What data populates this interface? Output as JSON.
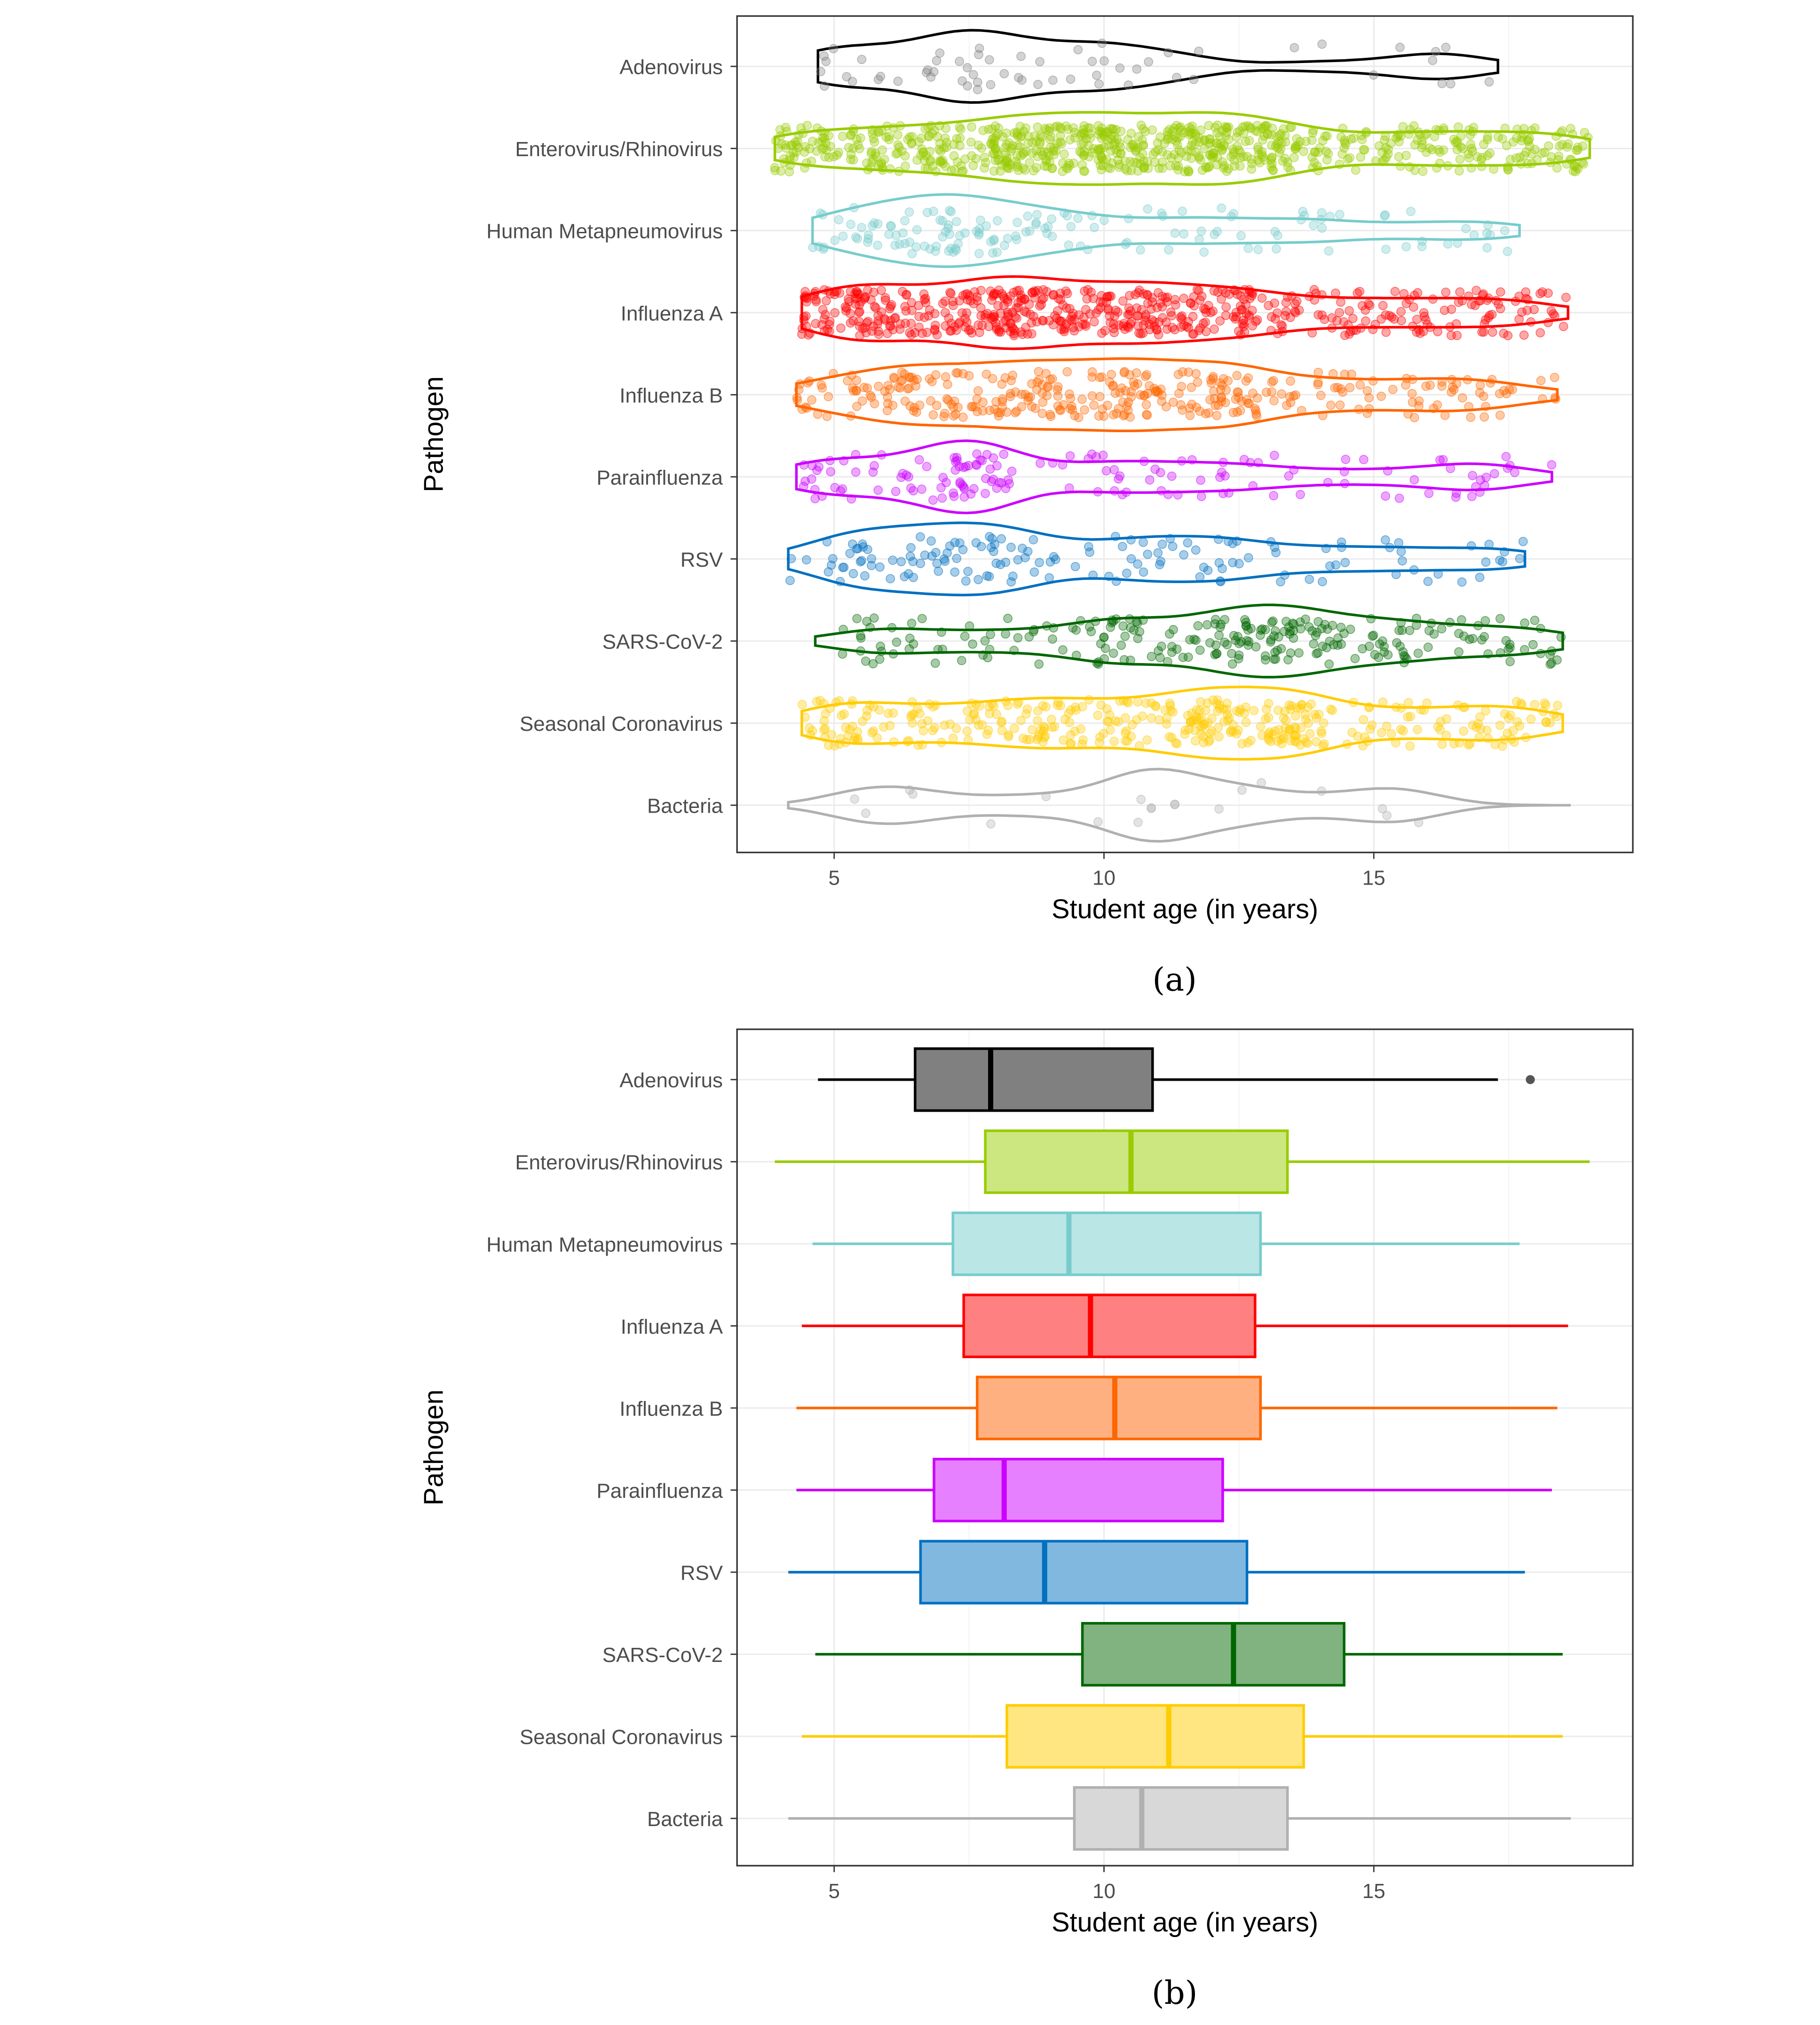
{
  "chart_data": [
    {
      "type": "violin",
      "panel_label": "(a)",
      "xlabel": "Student age (in years)",
      "ylabel": "Pathogen",
      "xlim": [
        3.2,
        19.8
      ],
      "xticks": [
        "5",
        "10",
        "15"
      ],
      "xtick_values": [
        5,
        10,
        15
      ],
      "grid": true,
      "points": "jittered, semi-transparent",
      "series": [
        {
          "name": "Adenovirus",
          "color": "#000000",
          "fill": "#808080",
          "n_approx": 60
        },
        {
          "name": "Enterovirus/Rhinovirus",
          "color": "#99CC00",
          "fill": "#99CC00",
          "n_approx": 800
        },
        {
          "name": "Human Metapneumovirus",
          "color": "#77CCCC",
          "fill": "#77CCCC",
          "n_approx": 150
        },
        {
          "name": "Influenza A",
          "color": "#FF0000",
          "fill": "#FF0000",
          "n_approx": 600
        },
        {
          "name": "Influenza B",
          "color": "#FF6600",
          "fill": "#FF6600",
          "n_approx": 350
        },
        {
          "name": "Parainfluenza",
          "color": "#CC00FF",
          "fill": "#CC00FF",
          "n_approx": 150
        },
        {
          "name": "RSV",
          "color": "#0070C0",
          "fill": "#0070C0",
          "n_approx": 150
        },
        {
          "name": "SARS-CoV-2",
          "color": "#006600",
          "fill": "#006600",
          "n_approx": 250
        },
        {
          "name": "Seasonal Coronavirus",
          "color": "#FFCC00",
          "fill": "#FFCC00",
          "n_approx": 400
        },
        {
          "name": "Bacteria",
          "color": "#B0B0B0",
          "fill": "#B0B0B0",
          "n_approx": 20
        }
      ]
    },
    {
      "type": "box",
      "panel_label": "(b)",
      "xlabel": "Student age (in years)",
      "ylabel": "Pathogen",
      "xlim": [
        3.2,
        19.8
      ],
      "xticks": [
        "5",
        "10",
        "15"
      ],
      "xtick_values": [
        5,
        10,
        15
      ],
      "grid": true,
      "series": [
        {
          "name": "Adenovirus",
          "color": "#000000",
          "fill": "#808080",
          "min": 4.7,
          "q1": 6.5,
          "median": 7.9,
          "q3": 10.9,
          "max": 17.3,
          "outliers": [
            17.9
          ]
        },
        {
          "name": "Enterovirus/Rhinovirus",
          "color": "#99CC00",
          "fill": "#CCE680",
          "min": 3.9,
          "q1": 7.8,
          "median": 10.5,
          "q3": 13.4,
          "max": 19.0,
          "outliers": []
        },
        {
          "name": "Human Metapneumovirus",
          "color": "#77CCCC",
          "fill": "#BBE6E6",
          "min": 4.6,
          "q1": 7.2,
          "median": 9.35,
          "q3": 12.9,
          "max": 17.7,
          "outliers": []
        },
        {
          "name": "Influenza A",
          "color": "#FF0000",
          "fill": "#FF8080",
          "min": 4.4,
          "q1": 7.4,
          "median": 9.75,
          "q3": 12.8,
          "max": 18.6,
          "outliers": []
        },
        {
          "name": "Influenza B",
          "color": "#FF6600",
          "fill": "#FFB080",
          "min": 4.3,
          "q1": 7.65,
          "median": 10.2,
          "q3": 12.9,
          "max": 18.4,
          "outliers": []
        },
        {
          "name": "Parainfluenza",
          "color": "#CC00FF",
          "fill": "#E680FF",
          "min": 4.3,
          "q1": 6.85,
          "median": 8.15,
          "q3": 12.2,
          "max": 18.3,
          "outliers": []
        },
        {
          "name": "RSV",
          "color": "#0070C0",
          "fill": "#80B8E0",
          "min": 4.15,
          "q1": 6.6,
          "median": 8.9,
          "q3": 12.65,
          "max": 17.8,
          "outliers": []
        },
        {
          "name": "SARS-CoV-2",
          "color": "#006600",
          "fill": "#80B380",
          "min": 4.65,
          "q1": 9.6,
          "median": 12.4,
          "q3": 14.45,
          "max": 18.5,
          "outliers": []
        },
        {
          "name": "Seasonal Coronavirus",
          "color": "#FFCC00",
          "fill": "#FFE680",
          "min": 4.4,
          "q1": 8.2,
          "median": 11.2,
          "q3": 13.7,
          "max": 18.5,
          "outliers": []
        },
        {
          "name": "Bacteria",
          "color": "#B0B0B0",
          "fill": "#D8D8D8",
          "min": 4.15,
          "q1": 9.45,
          "median": 10.7,
          "q3": 13.4,
          "max": 18.65,
          "outliers": []
        }
      ]
    }
  ]
}
